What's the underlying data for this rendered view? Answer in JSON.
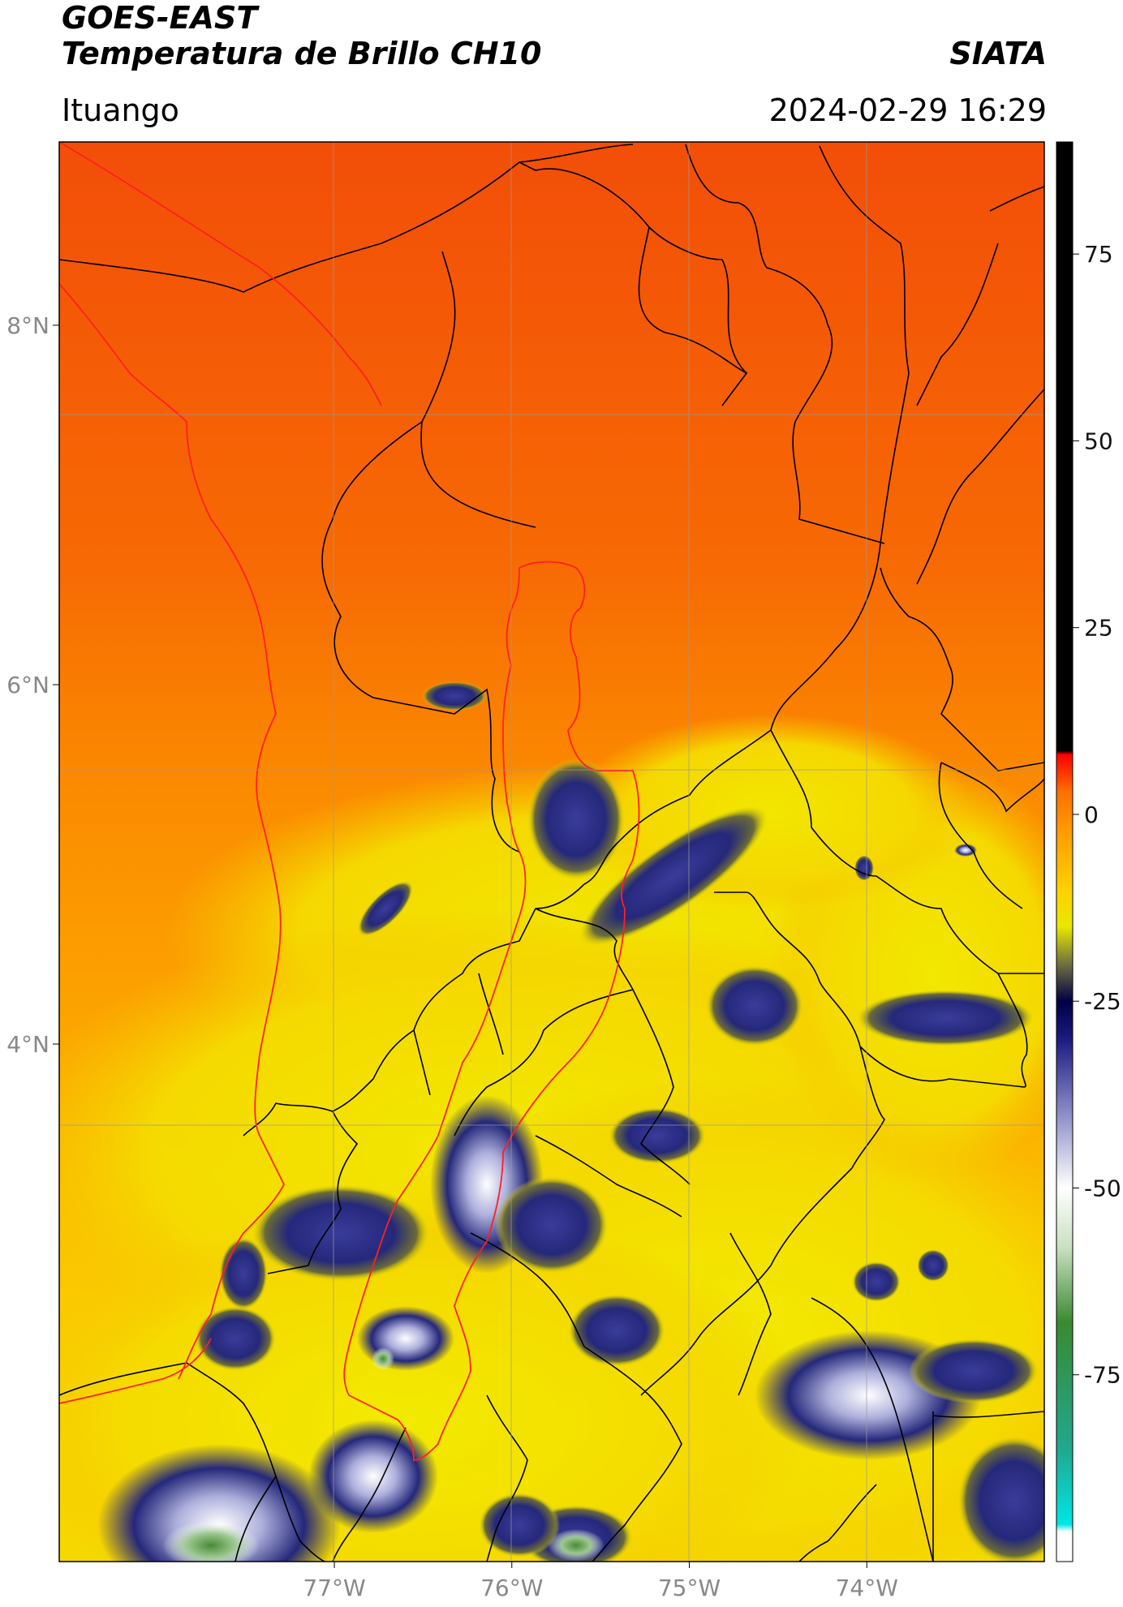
{
  "header": {
    "satellite": "GOES-EAST",
    "product": "Temperatura de Brillo CH10",
    "brand": "SIATA",
    "region": "Ituango",
    "timestamp": "2024-02-29 16:29"
  },
  "map": {
    "lat_range": [
      1.12,
      9.02
    ],
    "lon_range": [
      -78.55,
      -73.0
    ],
    "lat_ticks": [
      {
        "value": 8,
        "label": "8°N"
      },
      {
        "value": 6,
        "label": "6°N"
      },
      {
        "value": 4,
        "label": "4°N"
      }
    ],
    "lon_ticks": [
      {
        "value": -77,
        "label": "77°W"
      },
      {
        "value": -76,
        "label": "76°W"
      },
      {
        "value": -75,
        "label": "75°W"
      },
      {
        "value": -74,
        "label": "74°W"
      }
    ],
    "colors": {
      "warm_north": "#f5560a",
      "warm_mid": "#fb8a00",
      "yellow": "#f5f000",
      "cloud_blue": "#25287a",
      "cloud_white": "#e8e8f0",
      "cloud_green": "#4e8f3c",
      "border_black": "#000000",
      "basin_red": "#ff0000",
      "grid": "#9a9a9a"
    }
  },
  "colorbar": {
    "range": [
      -100,
      90
    ],
    "ticks": [
      {
        "value": 75,
        "label": "75"
      },
      {
        "value": 50,
        "label": "50"
      },
      {
        "value": 25,
        "label": "25"
      },
      {
        "value": 0,
        "label": "0"
      },
      {
        "value": -25,
        "label": "-25"
      },
      {
        "value": -50,
        "label": "-50"
      },
      {
        "value": -75,
        "label": "-75"
      }
    ],
    "stops": [
      {
        "value": -100,
        "color": "#ffffff"
      },
      {
        "value": -96,
        "color": "#ffffff"
      },
      {
        "value": -95,
        "color": "#00e5e5"
      },
      {
        "value": -85,
        "color": "#20a890"
      },
      {
        "value": -68,
        "color": "#3a8a30"
      },
      {
        "value": -58,
        "color": "#c8e0c0"
      },
      {
        "value": -50,
        "color": "#ffffff"
      },
      {
        "value": -40,
        "color": "#8c8cc8"
      },
      {
        "value": -30,
        "color": "#1a1a80"
      },
      {
        "value": -25,
        "color": "#000044"
      },
      {
        "value": -20,
        "color": "#707040"
      },
      {
        "value": -15,
        "color": "#e8e800"
      },
      {
        "value": -10,
        "color": "#ffd000"
      },
      {
        "value": -3,
        "color": "#ffa000"
      },
      {
        "value": 3,
        "color": "#ff7000"
      },
      {
        "value": 8,
        "color": "#ff0000"
      },
      {
        "value": 8.5,
        "color": "#000000"
      },
      {
        "value": 90,
        "color": "#000000"
      }
    ]
  }
}
